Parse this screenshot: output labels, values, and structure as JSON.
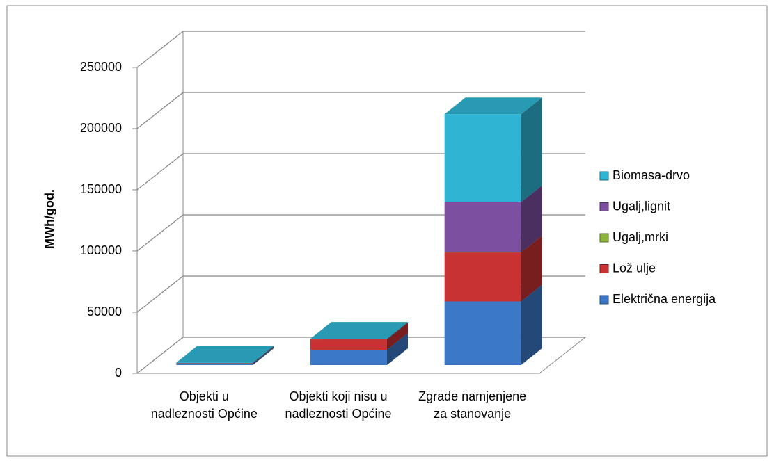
{
  "chart_data": {
    "type": "bar3d_stacked",
    "y_axis_label": "MWh/god.",
    "categories": [
      "Objekti u nadleznosti Općine",
      "Objekti koji nisu u nadleznosti Općine",
      "Zgrade namjenjene za stanovanje"
    ],
    "series": [
      {
        "name": "Električna energija",
        "color": "#3c78c8",
        "values": [
          1000,
          12500,
          52000
        ]
      },
      {
        "name": "Lož ulje",
        "color": "#c83232",
        "values": [
          500,
          8500,
          40000
        ]
      },
      {
        "name": "Ugalj,mrki",
        "color": "#8db33a",
        "values": [
          0,
          0,
          0
        ]
      },
      {
        "name": "Ugalj,lignit",
        "color": "#7d4fa0",
        "values": [
          0,
          0,
          41000
        ]
      },
      {
        "name": "Biomasa-drvo",
        "color": "#2fb5d3",
        "values": [
          500,
          500,
          72000
        ]
      }
    ],
    "ylim": [
      0,
      250000
    ],
    "yticks": [
      0,
      50000,
      100000,
      150000,
      200000,
      250000
    ],
    "grid": true,
    "legend": "right"
  }
}
